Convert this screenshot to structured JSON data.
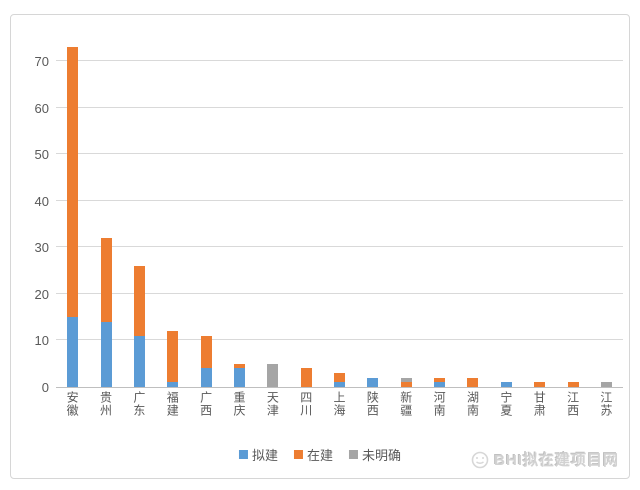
{
  "chart_data": {
    "type": "bar",
    "stacked": true,
    "title": "",
    "xlabel": "",
    "ylabel": "",
    "categories": [
      "安徽",
      "贵州",
      "广东",
      "福建",
      "广西",
      "重庆",
      "天津",
      "四川",
      "上海",
      "陕西",
      "新疆",
      "河南",
      "湖南",
      "宁夏",
      "甘肃",
      "江西",
      "江苏"
    ],
    "series": [
      {
        "name": "拟建",
        "color": "#5b9bd5",
        "values": [
          15,
          14,
          11,
          1,
          4,
          4,
          0,
          0,
          1,
          2,
          0,
          1,
          0,
          1,
          0,
          0,
          0
        ]
      },
      {
        "name": "在建",
        "color": "#ed7d31",
        "values": [
          58,
          18,
          15,
          11,
          7,
          1,
          0,
          4,
          2,
          0,
          1,
          1,
          2,
          0,
          1,
          1,
          0
        ]
      },
      {
        "name": "未明确",
        "color": "#a5a5a5",
        "values": [
          0,
          0,
          0,
          0,
          0,
          0,
          5,
          0,
          0,
          0,
          1,
          0,
          0,
          0,
          0,
          0,
          1
        ]
      }
    ],
    "totals": [
      73,
      32,
      26,
      12,
      11,
      5,
      5,
      4,
      3,
      2,
      2,
      2,
      2,
      1,
      1,
      1,
      1
    ],
    "y_axis": {
      "min": 0,
      "max": 70,
      "step": 10,
      "tick_labels": [
        "0",
        "10",
        "20",
        "30",
        "40",
        "50",
        "60",
        "70"
      ]
    },
    "grid": true,
    "legend_position": "bottom"
  },
  "colors": {
    "grid_line": "#d9d9d9",
    "axis_line": "#bfbfbf",
    "tick_text": "#595959",
    "frame_border": "#d6d6d6",
    "background": "#ffffff"
  },
  "watermark": {
    "icon": "bhi-logo-icon",
    "text": "BHI拟在建项目网"
  }
}
